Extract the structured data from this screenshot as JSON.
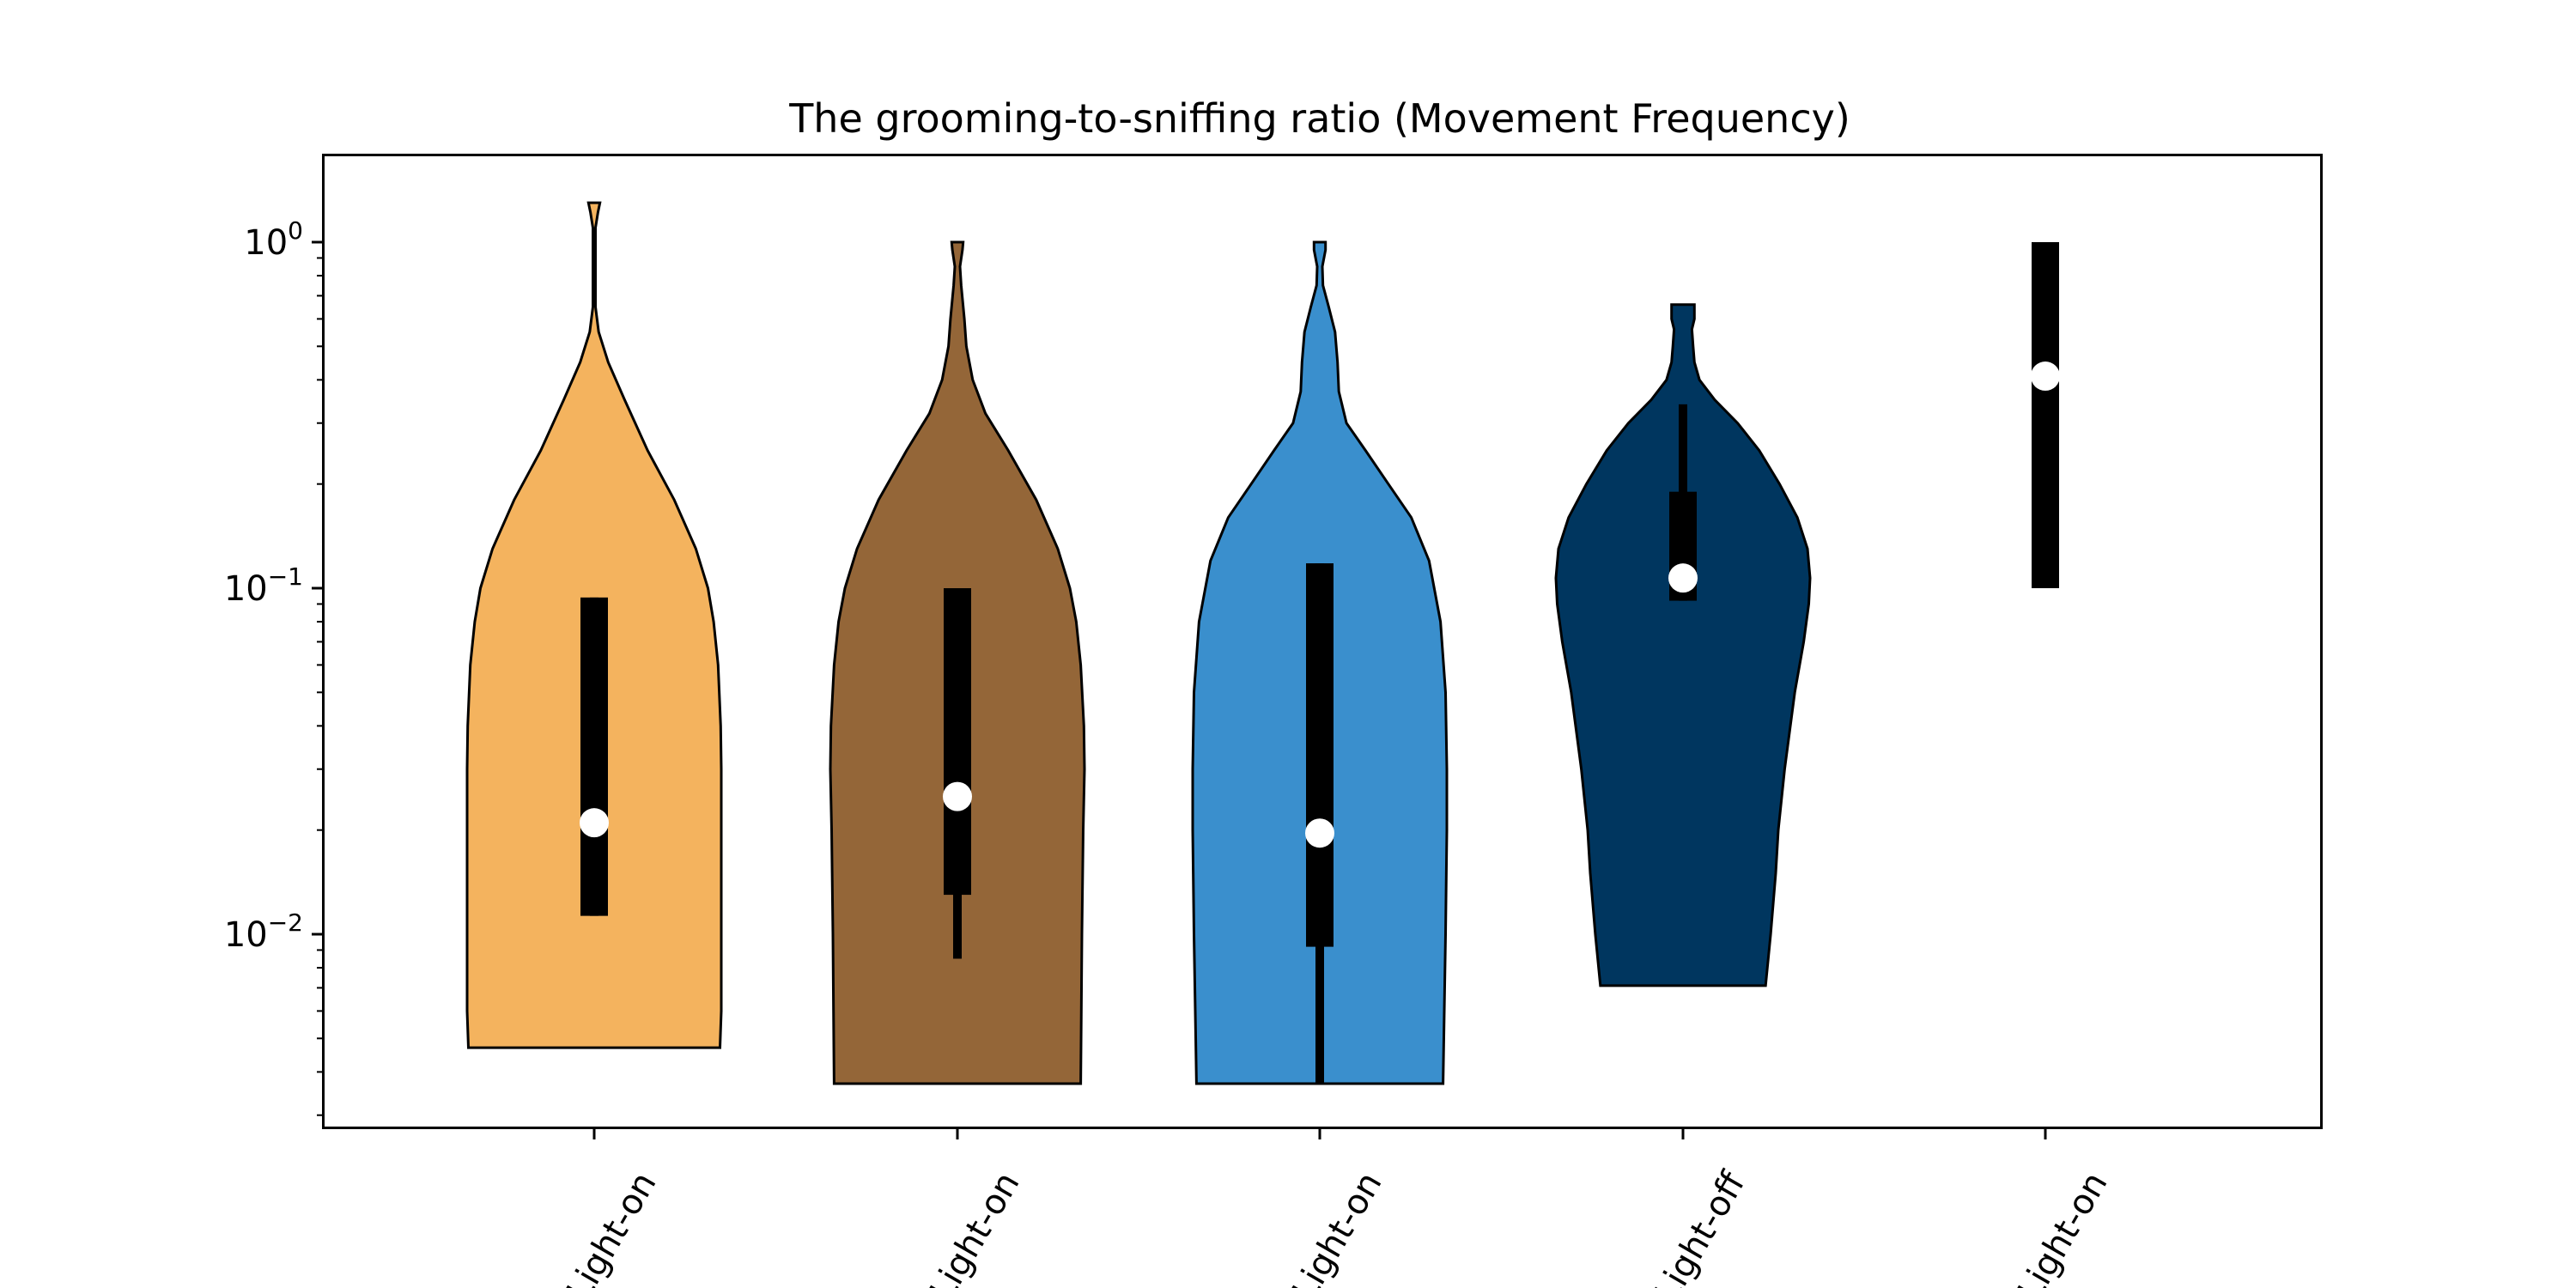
{
  "chart_data": {
    "type": "violin",
    "title": "The grooming-to-sniffing ratio (Movement Frequency)",
    "xlabel": "",
    "ylabel": "",
    "yscale": "log",
    "ylim": [
      0.0027,
      1.75
    ],
    "y_ticks": [
      {
        "base": "10",
        "exp": "0",
        "value": 1
      },
      {
        "base": "10",
        "exp": "−1",
        "value": 0.1
      },
      {
        "base": "10",
        "exp": "−2",
        "value": 0.01
      }
    ],
    "categories": [
      "Light-on",
      "Light-on",
      "Light-on",
      "Light-off",
      "Light-on"
    ],
    "grid": false,
    "legend": "none",
    "series": [
      {
        "color": "#F4B35E",
        "min": 0.0047,
        "max": 1.3,
        "q1": 0.0113,
        "median": 0.021,
        "q3": 0.094,
        "whisker_low": 0.0113,
        "whisker_high": 0.094,
        "profile": [
          [
            0.0047,
            0.99
          ],
          [
            0.006,
            1.0
          ],
          [
            0.01,
            1.0
          ],
          [
            0.02,
            1.0
          ],
          [
            0.03,
            1.0
          ],
          [
            0.04,
            0.995
          ],
          [
            0.06,
            0.975
          ],
          [
            0.08,
            0.94
          ],
          [
            0.1,
            0.895
          ],
          [
            0.13,
            0.8
          ],
          [
            0.18,
            0.63
          ],
          [
            0.25,
            0.42
          ],
          [
            0.35,
            0.24
          ],
          [
            0.45,
            0.11
          ],
          [
            0.55,
            0.035
          ],
          [
            0.65,
            0.01
          ],
          [
            0.8,
            0.01
          ],
          [
            1.1,
            0.01
          ],
          [
            1.22,
            0.03
          ],
          [
            1.3,
            0.045
          ]
        ]
      },
      {
        "color": "#946638",
        "min": 0.0037,
        "max": 1.0,
        "q1": 0.013,
        "median": 0.025,
        "q3": 0.1,
        "whisker_low": 0.0085,
        "whisker_high": 0.1,
        "profile": [
          [
            0.0037,
            0.97
          ],
          [
            0.006,
            0.975
          ],
          [
            0.01,
            0.98
          ],
          [
            0.02,
            0.99
          ],
          [
            0.03,
            1.0
          ],
          [
            0.04,
            0.995
          ],
          [
            0.06,
            0.97
          ],
          [
            0.08,
            0.935
          ],
          [
            0.1,
            0.885
          ],
          [
            0.13,
            0.79
          ],
          [
            0.18,
            0.62
          ],
          [
            0.25,
            0.4
          ],
          [
            0.32,
            0.22
          ],
          [
            0.4,
            0.12
          ],
          [
            0.5,
            0.07
          ],
          [
            0.6,
            0.055
          ],
          [
            0.75,
            0.03
          ],
          [
            0.85,
            0.02
          ],
          [
            0.95,
            0.04
          ],
          [
            1.0,
            0.045
          ]
        ]
      },
      {
        "color": "#3A8FCD",
        "min": 0.0037,
        "max": 1.0,
        "q1": 0.0092,
        "median": 0.0196,
        "q3": 0.118,
        "whisker_low": 0.0037,
        "whisker_high": 0.118,
        "profile": [
          [
            0.0037,
            0.97
          ],
          [
            0.006,
            0.98
          ],
          [
            0.01,
            0.99
          ],
          [
            0.02,
            1.0
          ],
          [
            0.03,
            1.0
          ],
          [
            0.05,
            0.99
          ],
          [
            0.08,
            0.95
          ],
          [
            0.12,
            0.86
          ],
          [
            0.16,
            0.72
          ],
          [
            0.2,
            0.54
          ],
          [
            0.25,
            0.36
          ],
          [
            0.3,
            0.21
          ],
          [
            0.37,
            0.15
          ],
          [
            0.45,
            0.14
          ],
          [
            0.55,
            0.12
          ],
          [
            0.65,
            0.07
          ],
          [
            0.75,
            0.025
          ],
          [
            0.85,
            0.02
          ],
          [
            0.95,
            0.045
          ],
          [
            1.0,
            0.045
          ]
        ]
      },
      {
        "color": "#00365F",
        "min": 0.0071,
        "max": 0.66,
        "q1": 0.092,
        "median": 0.107,
        "q3": 0.19,
        "whisker_low": 0.092,
        "whisker_high": 0.34,
        "profile": [
          [
            0.0071,
            0.65
          ],
          [
            0.01,
            0.69
          ],
          [
            0.015,
            0.73
          ],
          [
            0.02,
            0.75
          ],
          [
            0.03,
            0.8
          ],
          [
            0.05,
            0.88
          ],
          [
            0.07,
            0.95
          ],
          [
            0.09,
            0.99
          ],
          [
            0.107,
            1.0
          ],
          [
            0.13,
            0.98
          ],
          [
            0.16,
            0.9
          ],
          [
            0.2,
            0.76
          ],
          [
            0.25,
            0.6
          ],
          [
            0.3,
            0.43
          ],
          [
            0.35,
            0.25
          ],
          [
            0.4,
            0.13
          ],
          [
            0.45,
            0.09
          ],
          [
            0.5,
            0.08
          ],
          [
            0.56,
            0.07
          ],
          [
            0.6,
            0.09
          ],
          [
            0.66,
            0.09
          ]
        ]
      },
      {
        "color": "#000000",
        "min": 0.1,
        "max": 1.0,
        "q1": 0.1,
        "median": 0.41,
        "q3": 1.0,
        "whisker_low": 0.1,
        "whisker_high": 1.0,
        "profile": []
      }
    ]
  }
}
